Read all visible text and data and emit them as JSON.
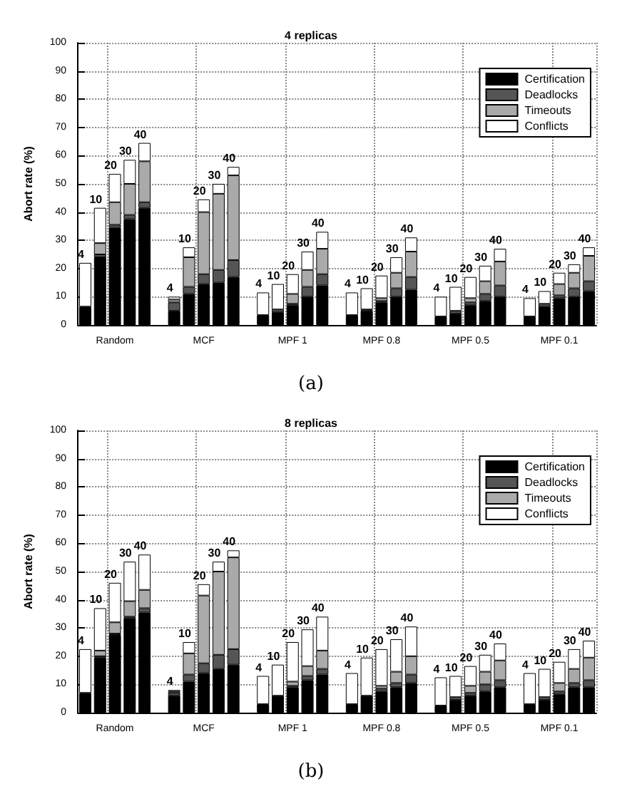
{
  "chart_data": [
    {
      "type": "bar",
      "title": "4 replicas",
      "ylabel": "Abort rate (%)",
      "stacked": true,
      "grid": true,
      "legend": "top right",
      "ylim": [
        0,
        100
      ],
      "yticks": [
        0,
        10,
        20,
        30,
        40,
        50,
        60,
        70,
        80,
        90,
        100
      ],
      "annotations": [
        "4",
        "10",
        "20",
        "30",
        "40",
        "4",
        "10",
        "20",
        "30",
        "40",
        "4",
        "10",
        "20",
        "30",
        "40",
        "4",
        "10",
        "20",
        "30",
        "40",
        "4",
        "10",
        "20",
        "30",
        "40",
        "4",
        "10",
        "20",
        "30",
        "40",
        "(a)"
      ],
      "categories": [
        null,
        null,
        "Random",
        null,
        null,
        null,
        null,
        null,
        "MCF",
        null,
        null,
        null,
        null,
        null,
        "MPF 1",
        null,
        null,
        null,
        null,
        null,
        "MPF 0.8",
        null,
        null,
        null,
        null,
        null,
        "MPF 0.5",
        null,
        null,
        null,
        null,
        null,
        "MPF 0.1",
        null,
        null
      ],
      "series": [
        {
          "name": "Certification",
          "color": "#000000",
          "values": [
            6.5,
            24,
            34.5,
            37.5,
            41.5,
            null,
            5,
            11,
            14.5,
            15,
            17,
            null,
            3.5,
            4.5,
            7,
            10,
            14,
            null,
            3.5,
            5,
            8,
            10,
            12.5,
            null,
            3,
            4,
            7,
            8.5,
            10,
            null,
            3,
            6.5,
            9.5,
            10,
            12
          ]
        },
        {
          "name": "Deadlocks",
          "color": "#555555",
          "values": [
            null,
            1,
            1,
            1.5,
            2,
            null,
            3,
            2.5,
            3.5,
            4.5,
            6,
            null,
            null,
            1,
            0.5,
            3.5,
            4,
            null,
            null,
            0.5,
            0.5,
            3,
            4.5,
            null,
            null,
            1,
            1,
            2.5,
            4,
            null,
            null,
            1,
            1,
            3,
            3.5
          ]
        },
        {
          "name": "Timeouts",
          "color": "#aaaaaa",
          "values": [
            null,
            4,
            8,
            11,
            14.5,
            null,
            1,
            10.5,
            22,
            27,
            30,
            null,
            null,
            null,
            3.5,
            6,
            9,
            null,
            null,
            null,
            1,
            5.5,
            9,
            null,
            null,
            null,
            1.5,
            4.5,
            8.5,
            null,
            null,
            null,
            4,
            5.5,
            9
          ]
        },
        {
          "name": "Conflicts",
          "color": "#ffffff",
          "values": [
            15.5,
            12.5,
            10,
            8.5,
            6.5,
            null,
            1,
            3.5,
            4.5,
            3.5,
            3,
            null,
            8,
            9,
            7,
            6.5,
            6,
            null,
            8,
            7.5,
            8,
            5.5,
            5,
            null,
            7,
            8.5,
            7.5,
            5.5,
            4.5,
            null,
            6.5,
            4.5,
            4,
            3,
            3
          ]
        }
      ]
    },
    {
      "type": "bar",
      "title": "8 replicas",
      "ylabel": "Abort rate (%)",
      "stacked": true,
      "grid": true,
      "legend": "top right",
      "ylim": [
        0,
        100
      ],
      "yticks": [
        0,
        10,
        20,
        30,
        40,
        50,
        60,
        70,
        80,
        90,
        100
      ],
      "annotations": [
        "4",
        "10",
        "20",
        "30",
        "40",
        "4",
        "10",
        "20",
        "30",
        "40",
        "4",
        "10",
        "20",
        "30",
        "40",
        "4",
        "10",
        "20",
        "30",
        "40",
        "4",
        "10",
        "20",
        "30",
        "40",
        "4",
        "10",
        "20",
        "30",
        "40",
        "(b)"
      ],
      "categories": [
        null,
        null,
        "Random",
        null,
        null,
        null,
        null,
        null,
        "MCF",
        null,
        null,
        null,
        null,
        null,
        "MPF 1",
        null,
        null,
        null,
        null,
        null,
        "MPF 0.8",
        null,
        null,
        null,
        null,
        null,
        "MPF 0.5",
        null,
        null,
        null,
        null,
        null,
        "MPF 0.1",
        null,
        null
      ],
      "series": [
        {
          "name": "Certification",
          "color": "#000000",
          "values": [
            7,
            19.5,
            27.5,
            33.5,
            35.5,
            null,
            6,
            11,
            14,
            15.5,
            17,
            null,
            3,
            6,
            9,
            11.5,
            13.5,
            null,
            3,
            6,
            7.5,
            9,
            10.5,
            null,
            2.5,
            4.5,
            6,
            7.5,
            9,
            null,
            3,
            4.5,
            6.5,
            9,
            9
          ]
        },
        {
          "name": "Deadlocks",
          "color": "#555555",
          "values": [
            null,
            0.5,
            0.5,
            0.5,
            1.5,
            null,
            1,
            2.5,
            3.5,
            5,
            5.5,
            null,
            null,
            null,
            0.5,
            1.5,
            2,
            null,
            null,
            null,
            1,
            1.5,
            3,
            null,
            null,
            1,
            1,
            2.5,
            2.5,
            null,
            null,
            1,
            1,
            1.5,
            2.5
          ]
        },
        {
          "name": "Timeouts",
          "color": "#aaaaaa",
          "values": [
            null,
            2,
            4,
            5.5,
            6.5,
            null,
            0.5,
            7.5,
            24,
            29.5,
            32.5,
            null,
            null,
            null,
            1.5,
            3.5,
            6.5,
            null,
            null,
            null,
            1,
            4,
            6.5,
            null,
            null,
            null,
            2.5,
            4.5,
            7,
            null,
            null,
            null,
            3,
            5,
            8
          ]
        },
        {
          "name": "Conflicts",
          "color": "#ffffff",
          "values": [
            15.5,
            15,
            14,
            14,
            12.5,
            null,
            0.5,
            4,
            4,
            3.5,
            2.5,
            null,
            10,
            11,
            14,
            13,
            12,
            null,
            11,
            13.5,
            13,
            11.5,
            10.5,
            null,
            10,
            7.5,
            7,
            6,
            6,
            null,
            11,
            10,
            7.5,
            7,
            6
          ]
        }
      ]
    }
  ]
}
